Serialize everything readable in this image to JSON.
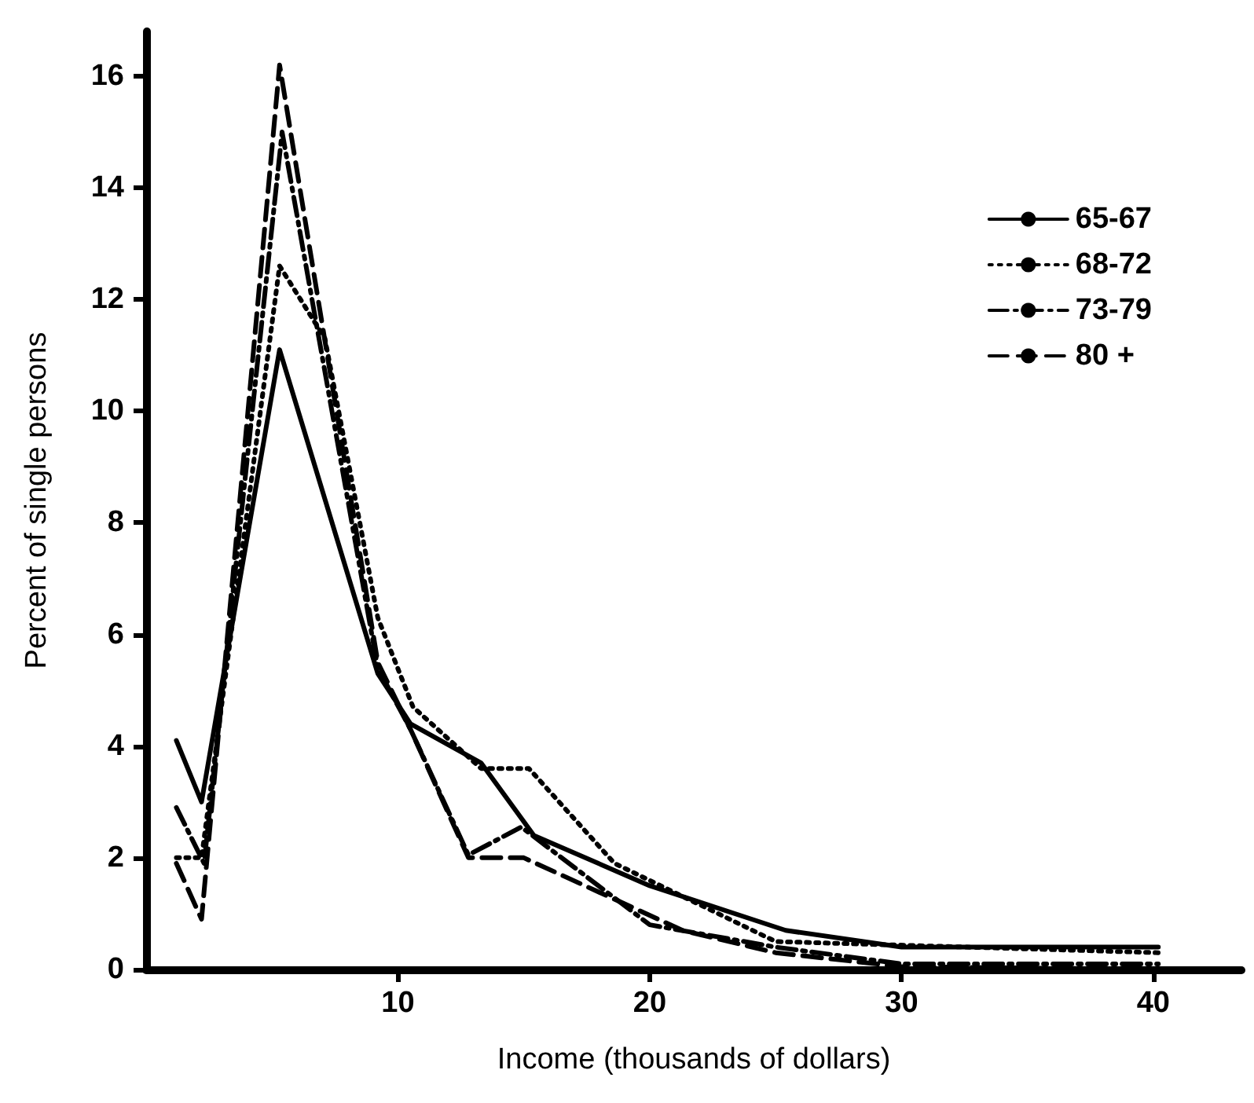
{
  "chart_data": {
    "type": "line",
    "xlabel": "Income (thousands of dollars)",
    "ylabel": "Percent of single persons",
    "xlim": [
      0,
      43.5
    ],
    "xticks": [
      10,
      20,
      30,
      40
    ],
    "ylim": [
      0,
      16.8
    ],
    "yticks": [
      0,
      2,
      4,
      6,
      8,
      10,
      12,
      14,
      16
    ],
    "grid": false,
    "legend": "top right",
    "marker": "none",
    "series": [
      {
        "name": "65-67",
        "color": "#000000",
        "line_style": "solid",
        "x": [
          1.2,
          2.2,
          5.3,
          9.2,
          10.5,
          13.3,
          15.4,
          20,
          25.4,
          30,
          40.2
        ],
        "values": [
          4.1,
          3.0,
          11.1,
          5.3,
          4.4,
          3.7,
          2.4,
          1.5,
          0.7,
          0.4,
          0.4
        ]
      },
      {
        "name": "68-72",
        "color": "#000000",
        "line_style": "dotted",
        "x": [
          1.2,
          2.2,
          5.3,
          7.1,
          9.2,
          10.6,
          13.3,
          15.2,
          18.6,
          25,
          40.2
        ],
        "values": [
          2.0,
          2.0,
          12.6,
          11.3,
          6.3,
          4.7,
          3.6,
          3.6,
          1.9,
          0.5,
          0.3
        ]
      },
      {
        "name": "73-79",
        "color": "#000000",
        "line_style": "dashdot",
        "x": [
          1.2,
          2.3,
          5.4,
          9.2,
          10.5,
          12.8,
          14.9,
          20,
          25,
          30,
          40.2
        ],
        "values": [
          2.9,
          1.9,
          15.0,
          5.4,
          4.3,
          2.05,
          2.55,
          0.8,
          0.4,
          0.1,
          0.1
        ]
      },
      {
        "name": "80 +",
        "color": "#000000",
        "line_style": "dashed",
        "x": [
          1.2,
          2.2,
          5.3,
          9.2,
          10.5,
          12.8,
          15,
          21.3,
          25,
          30,
          40.2
        ],
        "values": [
          1.9,
          0.9,
          16.2,
          5.5,
          4.3,
          2.0,
          2.0,
          0.7,
          0.3,
          0.05,
          0.0
        ]
      }
    ]
  }
}
